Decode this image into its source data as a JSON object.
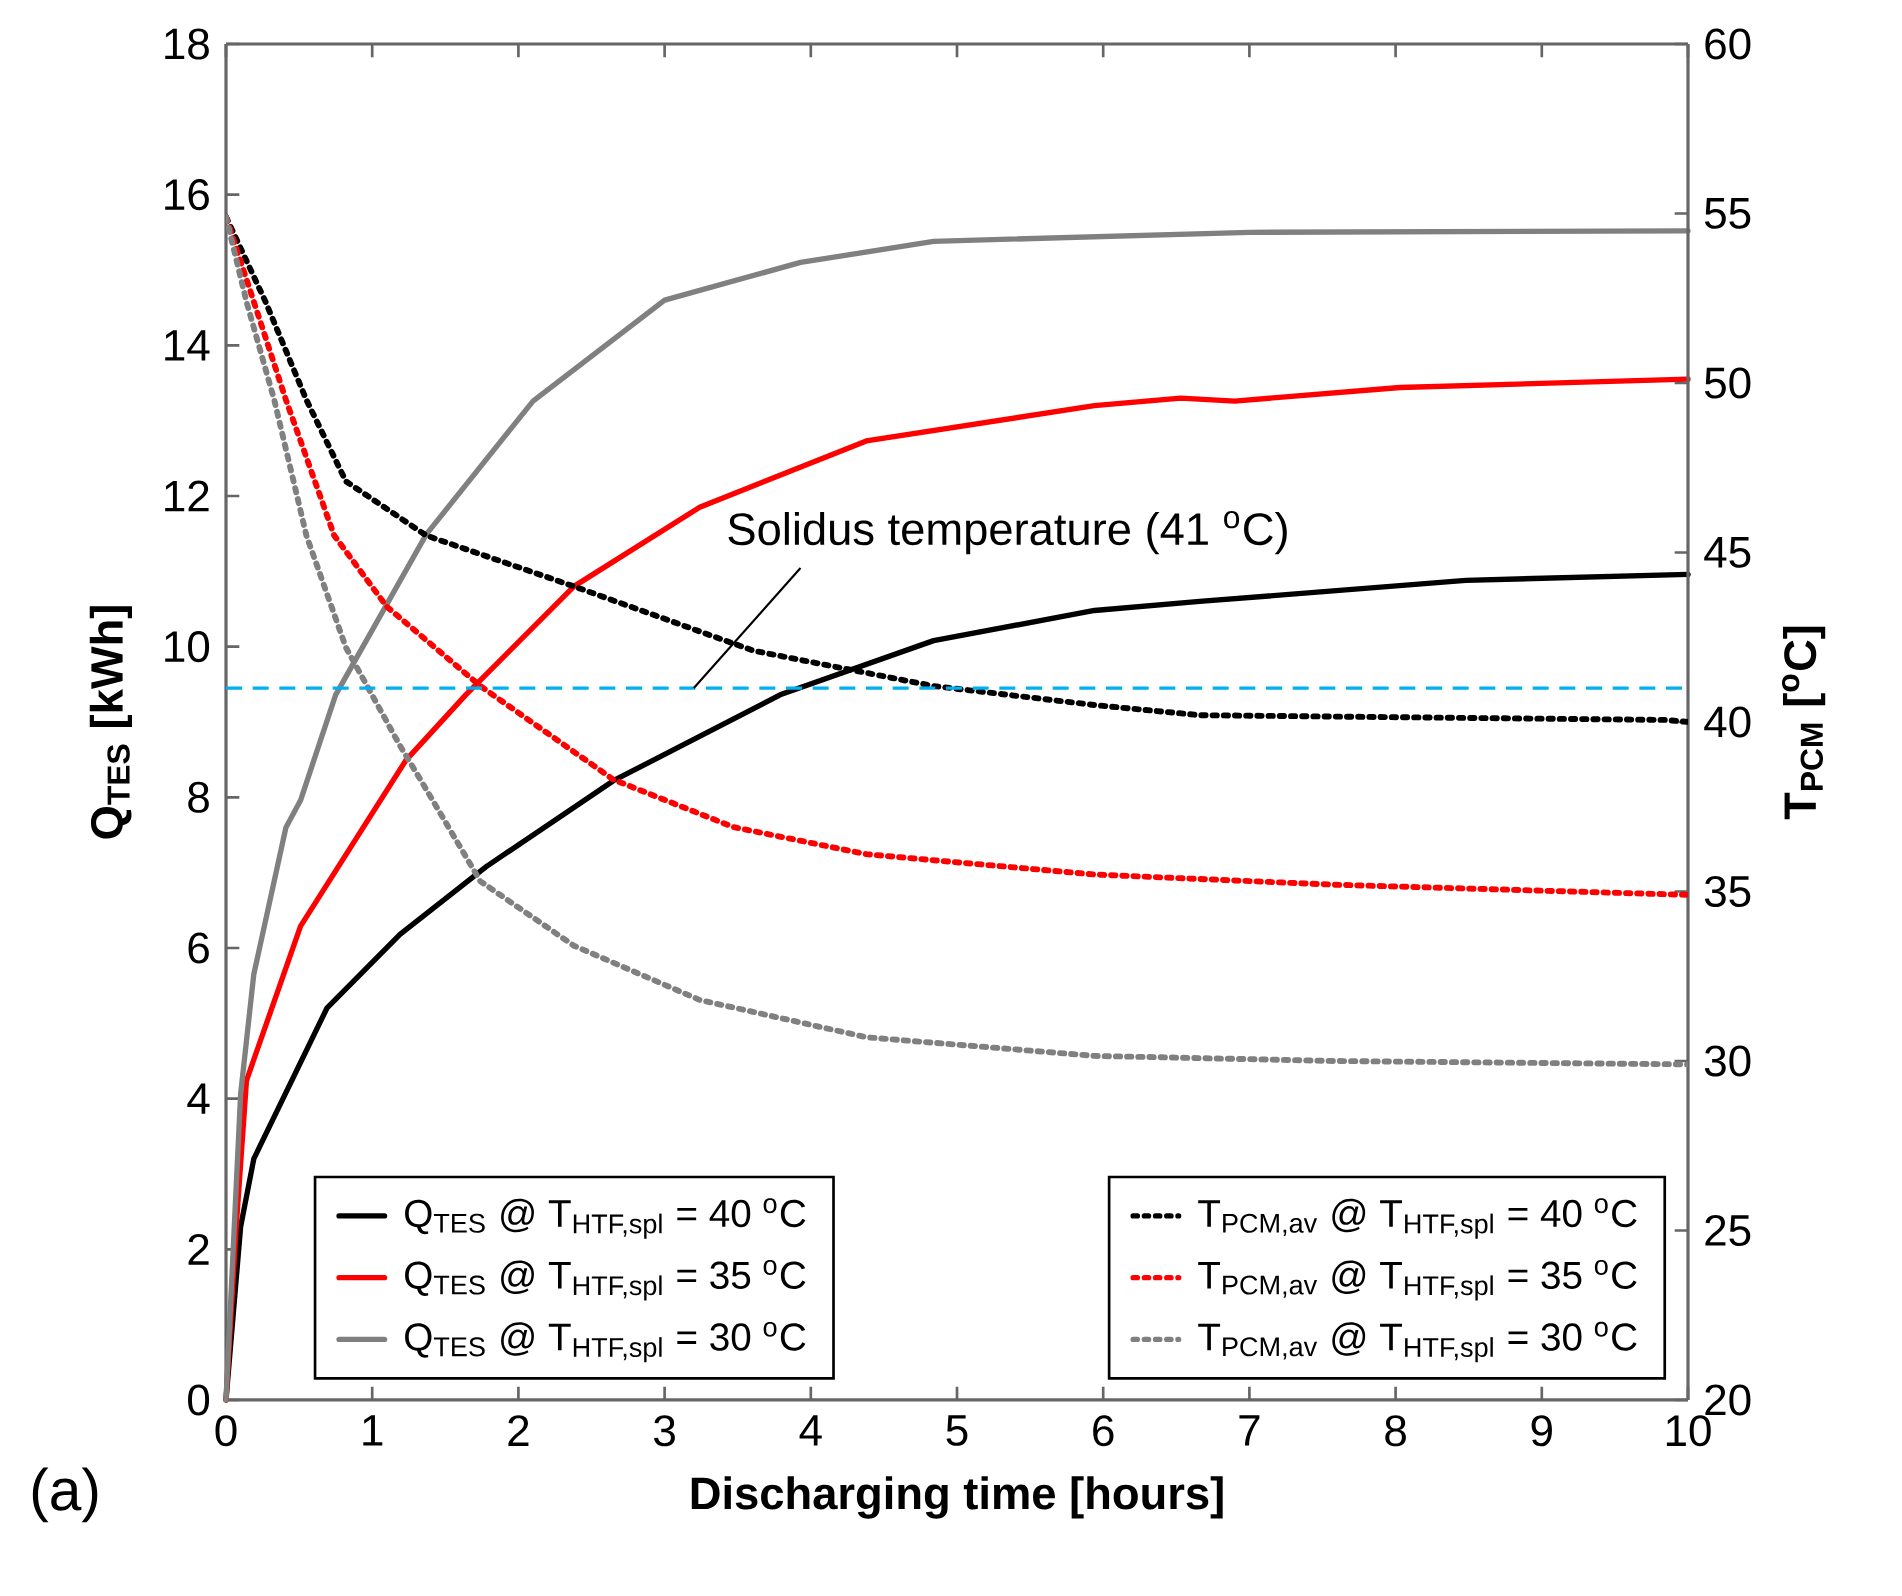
{
  "chart_data": {
    "type": "line",
    "xlabel": "Discharging time [hours]",
    "ylabel": "Q$_{TES}$ [kWh]",
    "y2label": "T$_{PCM}$ [$^{o}$C]",
    "xlim": [
      0,
      10
    ],
    "xticks": [
      0,
      1,
      2,
      3,
      4,
      5,
      6,
      7,
      8,
      9,
      10
    ],
    "ylim": [
      0,
      18
    ],
    "yticks": [
      0,
      2,
      4,
      6,
      8,
      10,
      12,
      14,
      16,
      18
    ],
    "y2lim": [
      20,
      60
    ],
    "y2ticks": [
      20,
      25,
      30,
      35,
      40,
      45,
      50,
      55,
      60
    ],
    "legend": "bottom",
    "grid": false,
    "series": [
      {
        "name": "Q$_{TES}$ @ T$_{HTF,spl}$ = 40 $^{o}$C",
        "color": "#000000",
        "axis": "y",
        "line_style": "solid",
        "x": [
          0,
          0.1,
          0.19,
          0.69,
          1.19,
          1.78,
          2.65,
          3.79,
          4.84,
          5.94,
          6.66,
          8.48,
          10
        ],
        "values": [
          0,
          2.3,
          3.2,
          5.2,
          6.18,
          7.08,
          8.22,
          9.36,
          10.08,
          10.48,
          10.6,
          10.88,
          10.96
        ]
      },
      {
        "name": "Q$_{TES}$ @ T$_{HTF,spl}$ = 35 $^{o}$C",
        "color": "#ff0000",
        "axis": "y",
        "line_style": "solid",
        "x": [
          0,
          0.07,
          0.14,
          0.51,
          1.23,
          1.64,
          2.38,
          3.24,
          4.38,
          5.94,
          6.53,
          6.9,
          8.03,
          10
        ],
        "values": [
          0,
          2.3,
          4.24,
          6.29,
          8.49,
          9.36,
          10.8,
          11.85,
          12.73,
          13.2,
          13.3,
          13.26,
          13.44,
          13.55
        ]
      },
      {
        "name": "Q$_{TES}$ @ T$_{HTF,spl}$ = 30 $^{o}$C",
        "color": "#808080",
        "axis": "y",
        "line_style": "solid",
        "x": [
          0,
          0.1,
          0.19,
          0.41,
          0.51,
          0.75,
          1.37,
          2.1,
          3.0,
          3.93,
          4.84,
          7,
          10
        ],
        "values": [
          0,
          4.06,
          5.65,
          7.6,
          7.96,
          9.36,
          11.49,
          13.26,
          14.6,
          15.1,
          15.38,
          15.5,
          15.52
        ]
      },
      {
        "name": "T$_{PCM,av}$ @ T$_{HTF,spl}$ = 40 $^{o}$C",
        "color": "#000000",
        "axis": "y2",
        "line_style": "dotted",
        "x": [
          0,
          0.27,
          0.55,
          0.82,
          1.37,
          2.38,
          3.61,
          4.84,
          5.94,
          6.66,
          9.85,
          10
        ],
        "values": [
          54.9,
          52.4,
          49.5,
          47.1,
          45.5,
          44.0,
          42.1,
          41.06,
          40.5,
          40.2,
          40.06,
          40.0
        ]
      },
      {
        "name": "T$_{PCM,av}$ @ T$_{HTF,spl}$ = 35 $^{o}$C",
        "color": "#ff0000",
        "axis": "y2",
        "line_style": "dotted",
        "x": [
          0,
          0.19,
          0.41,
          0.74,
          1.1,
          1.74,
          2.65,
          3.47,
          4.38,
          5.94,
          7.58,
          10
        ],
        "values": [
          54.9,
          52.4,
          49.5,
          45.5,
          43.4,
          41.06,
          38.3,
          36.9,
          36.1,
          35.5,
          35.2,
          34.9
        ]
      },
      {
        "name": "T$_{PCM,av}$ @ T$_{HTF,spl}$ = 30 $^{o}$C",
        "color": "#808080",
        "axis": "y2",
        "line_style": "dotted",
        "x": [
          0,
          0.14,
          0.33,
          0.55,
          0.82,
          1.19,
          1.33,
          1.74,
          2.38,
          3.24,
          4.38,
          5.94,
          7.58,
          10
        ],
        "values": [
          54.9,
          52.4,
          49.5,
          45.5,
          42.2,
          39.3,
          38.3,
          35.3,
          33.4,
          31.8,
          30.7,
          30.15,
          30.0,
          29.9
        ]
      }
    ],
    "ref_lines": [
      {
        "axis": "y2",
        "value": 41,
        "label": "Solidus temperature (41 $^{o}$C)",
        "color": "#00b0f0",
        "line_style": "dashed"
      }
    ],
    "annotations": [
      "(a)"
    ]
  }
}
